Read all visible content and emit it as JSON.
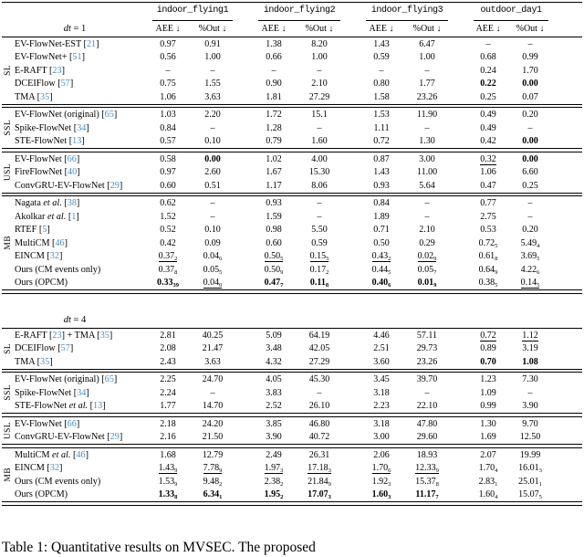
{
  "colors": {
    "cite": "#4a90c8",
    "text": "#000000",
    "background": "#ffffff"
  },
  "header": {
    "datasets": [
      "indoor_flying1",
      "indoor_flying2",
      "indoor_flying3",
      "outdoor_day1"
    ],
    "metrics": [
      "AEE ↓",
      "%Out ↓"
    ]
  },
  "caption": {
    "text": "Table 1: Quantitative results on MVSEC. The proposed"
  },
  "tables": [
    {
      "dt_label": "dt = 1",
      "show_dataset_header": true,
      "groups": [
        {
          "label": "SL",
          "rows": [
            {
              "label": "EV-FlowNet-EST [21]",
              "cells": [
                "0.97",
                "0.91",
                "1.38",
                "8.20",
                "1.43",
                "6.47",
                "–",
                "–"
              ]
            },
            {
              "label": "EV-FlowNet+ [51]",
              "cells": [
                "0.56",
                "1.00",
                "0.66",
                "1.00",
                "0.59",
                "1.00",
                "0.68",
                "0.99"
              ]
            },
            {
              "label": "E-RAFT [23]",
              "cells": [
                "–",
                "–",
                "–",
                "–",
                "–",
                "–",
                "0.24",
                "1.70"
              ]
            },
            {
              "label": "DCEIFlow [57]",
              "cells": [
                "0.75",
                "1.55",
                "0.90",
                "2.10",
                "0.80",
                "1.77",
                "b:0.22",
                "b:0.00"
              ]
            },
            {
              "label": "TMA [35]",
              "cells": [
                "1.06",
                "3.63",
                "1.81",
                "27.29",
                "1.58",
                "23.26",
                "0.25",
                "0.07"
              ]
            }
          ]
        },
        {
          "label": "SSL",
          "rows": [
            {
              "label": "EV-FlowNet (original) [65]",
              "cells": [
                "1.03",
                "2.20",
                "1.72",
                "15.1",
                "1.53",
                "11.90",
                "0.49",
                "0.20"
              ]
            },
            {
              "label": "Spike-FlowNet [34]",
              "cells": [
                "0.84",
                "–",
                "1.28",
                "–",
                "1.11",
                "–",
                "0.49",
                "–"
              ]
            },
            {
              "label": "STE-FlowNet [13]",
              "cells": [
                "0.57",
                "0.10",
                "0.79",
                "1.60",
                "0.72",
                "1.30",
                "0.42",
                "b:0.00"
              ]
            }
          ]
        },
        {
          "label": "USL",
          "rows": [
            {
              "label": "EV-FlowNet [66]",
              "cells": [
                "0.58",
                "b:0.00",
                "1.02",
                "4.00",
                "0.87",
                "3.00",
                "u:0.32",
                "b:0.00"
              ]
            },
            {
              "label": "FireFlowNet [40]",
              "cells": [
                "0.97",
                "2.60",
                "1.67",
                "15.30",
                "1.43",
                "11.00",
                "1.06",
                "6.60"
              ]
            },
            {
              "label": "ConvGRU-EV-FlowNet [29]",
              "cells": [
                "0.60",
                "0.51",
                "1.17",
                "8.06",
                "0.93",
                "5.64",
                "0.47",
                "0.25"
              ]
            }
          ]
        },
        {
          "label": "MB",
          "rows": [
            {
              "label": "Nagata et al. [38]",
              "cells": [
                "0.62",
                "–",
                "0.93",
                "–",
                "0.84",
                "–",
                "0.77",
                "–"
              ]
            },
            {
              "label": "Akolkar et al. [1]",
              "cells": [
                "1.52",
                "–",
                "1.59",
                "–",
                "1.89",
                "–",
                "2.75",
                "–"
              ]
            },
            {
              "label": "RTEF [5]",
              "cells": [
                "0.52",
                "0.10",
                "0.98",
                "5.50",
                "0.71",
                "2.10",
                "0.53",
                "0.20"
              ]
            },
            {
              "label": "MultiCM [46]",
              "cells": [
                "0.42",
                "0.09",
                "0.60",
                "0.59",
                "0.50",
                "0.29",
                "0.72_5",
                "5.49_4"
              ]
            },
            {
              "label": "EINCM [32]",
              "cells": [
                "u:0.37_2",
                "0.04_6",
                "u:0.50_5",
                "u:0.15_5",
                "u:0.43_2",
                "u:0.02_9",
                "0.61_8",
                "3.69_5"
              ]
            },
            {
              "label": "Ours (CM events only)",
              "cells": [
                "0.37_8",
                "0.05_5",
                "0.50_9",
                "0.17_2",
                "0.44_5",
                "0.05_7",
                "0.64_9",
                "4.22_6"
              ]
            },
            {
              "label": "Ours (OPCM)",
              "cells": [
                "b:0.33_39",
                "u:0.04_0",
                "b:0.47_7",
                "b:0.11_8",
                "b:0.40_6",
                "b:0.01_9",
                "0.38_5",
                "u:0.14_5"
              ]
            }
          ]
        }
      ]
    },
    {
      "dt_label": "dt = 4",
      "show_dataset_header": false,
      "groups": [
        {
          "label": "SL",
          "rows": [
            {
              "label": "E-RAFT [23] + TMA [35]",
              "cells": [
                "2.81",
                "40.25",
                "5.09",
                "64.19",
                "4.46",
                "57.11",
                "u:0.72",
                "u:1.12"
              ]
            },
            {
              "label": "DCEIFlow [57]",
              "cells": [
                "2.08",
                "21.47",
                "3.48",
                "42.05",
                "2.51",
                "29.73",
                "0.89",
                "3.19"
              ]
            },
            {
              "label": "TMA [35]",
              "cells": [
                "2.43",
                "3.63",
                "4.32",
                "27.29",
                "3.60",
                "23.26",
                "b:0.70",
                "b:1.08"
              ]
            }
          ]
        },
        {
          "label": "SSL",
          "rows": [
            {
              "label": "EV-FlowNet (original) [65]",
              "cells": [
                "2.25",
                "24.70",
                "4.05",
                "45.30",
                "3.45",
                "39.70",
                "1.23",
                "7.30"
              ]
            },
            {
              "label": "Spike-FlowNet [34]",
              "cells": [
                "2.24",
                "–",
                "3.83",
                "–",
                "3.18",
                "–",
                "1.09",
                "–"
              ]
            },
            {
              "label": "STE-FlowNet et al. [13]",
              "cells": [
                "1.77",
                "14.70",
                "2.52",
                "26.10",
                "2.23",
                "22.10",
                "0.99",
                "3.90"
              ]
            }
          ]
        },
        {
          "label": "USL",
          "rows": [
            {
              "label": "EV-FlowNet [66]",
              "cells": [
                "2.18",
                "24.20",
                "3.85",
                "46.80",
                "3.18",
                "47.80",
                "1.30",
                "9.70"
              ]
            },
            {
              "label": "ConvGRU-EV-FlowNet [29]",
              "cells": [
                "2.16",
                "21.50",
                "3.90",
                "40.72",
                "3.00",
                "29.60",
                "1.69",
                "12.50"
              ]
            }
          ]
        },
        {
          "label": "MB",
          "rows": [
            {
              "label": "MultiCM et al. [46]",
              "cells": [
                "1.68",
                "12.79",
                "2.49",
                "26.31",
                "2.06",
                "18.93",
                "2.07",
                "19.99"
              ]
            },
            {
              "label": "EINCM [32]",
              "cells": [
                "u:1.43_9",
                "u:7.78_9",
                "u:1.97_3",
                "u:17.18_3",
                "u:1.70_6",
                "u:12.33_9",
                "1.70_4",
                "16.01_3"
              ]
            },
            {
              "label": "Ours (CM events only)",
              "cells": [
                "1.53_9",
                "9.48_2",
                "2.38_2",
                "21.84_9",
                "1.92_3",
                "15.37_8",
                "2.83_1",
                "25.01_1"
              ]
            },
            {
              "label": "Ours (OPCM)",
              "cells": [
                "b:1.33_8",
                "b:6.34_1",
                "b:1.95_2",
                "b:17.07_3",
                "b:1.60_3",
                "b:11.17_7",
                "1.60_4",
                "15.07_5"
              ]
            }
          ]
        }
      ]
    }
  ]
}
